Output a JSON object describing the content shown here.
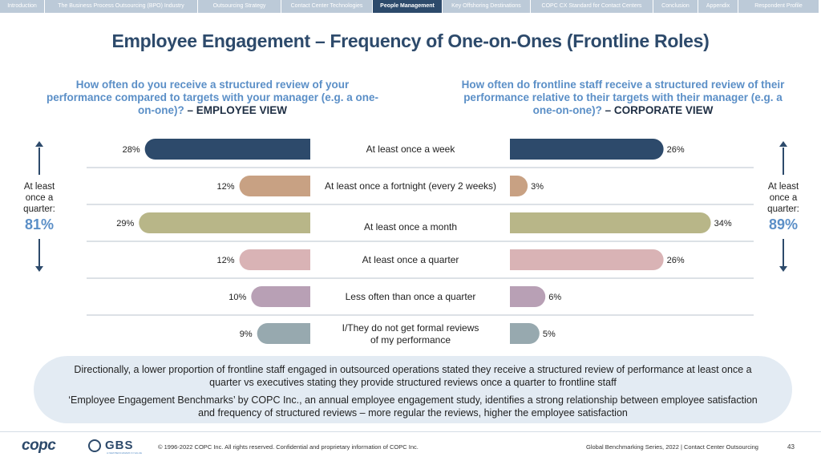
{
  "nav": {
    "tabs": [
      {
        "label": "Introduction",
        "width": 55
      },
      {
        "label": "The Business Process Outsourcing (BPO) Industry",
        "width": 190
      },
      {
        "label": "Outsourcing Strategy",
        "width": 103
      },
      {
        "label": "Contact Center Technologies",
        "width": 113
      },
      {
        "label": "People Management",
        "width": 86,
        "active": true
      },
      {
        "label": "Key Offshoring Destinations",
        "width": 109
      },
      {
        "label": "COPC CX Standard for Contact Centers",
        "width": 152
      },
      {
        "label": "Conclusion",
        "width": 55
      },
      {
        "label": "Appendix",
        "width": 49
      },
      {
        "label": "Respondent Profile",
        "width": 100
      }
    ]
  },
  "title": "Employee Engagement – Frequency of One-on-Ones (Frontline Roles)",
  "left_question": {
    "text": "How often do you receive a structured review of your performance compared to targets with your manager (e.g. a one-on-one)?",
    "view": "– EMPLOYEE VIEW"
  },
  "right_question": {
    "text": "How often do frontline staff receive a structured review of their performance relative to their targets with their manager (e.g. a one-on-one)?",
    "view": "– CORPORATE VIEW"
  },
  "left_side": {
    "label": "At least once a quarter:",
    "value": "81%"
  },
  "right_side": {
    "label": "At least once a quarter:",
    "value": "89%"
  },
  "chart_data": {
    "type": "bar",
    "orientation": "diverging-horizontal",
    "categories": [
      "At least once a week",
      "At least once a fortnight (every 2 weeks)",
      "At least once a month",
      "At least once a quarter",
      "Less often than once a quarter",
      "I/They do not get formal reviews of my performance"
    ],
    "series": [
      {
        "name": "EMPLOYEE VIEW",
        "values": [
          28,
          12,
          29,
          12,
          10,
          9
        ]
      },
      {
        "name": "CORPORATE VIEW",
        "values": [
          26,
          3,
          34,
          26,
          6,
          5
        ]
      }
    ],
    "colors": [
      "#2d4a6b",
      "#c8a183",
      "#b8b688",
      "#d9b3b5",
      "#b8a0b5",
      "#97a9af"
    ],
    "unit": "%"
  },
  "summary": {
    "p1": "Directionally, a lower proportion of frontline staff engaged in outsourced operations stated they receive a structured review of performance at least once a quarter vs executives stating they provide structured reviews once a quarter to frontline staff",
    "p2": "‘Employee Engagement Benchmarks’ by COPC Inc., an annual employee engagement study, identifies a strong relationship between employee satisfaction and frequency of structured reviews – more regular the reviews, higher the employee satisfaction"
  },
  "footer": {
    "logo_copc": "copc",
    "logo_gbs": "GBS",
    "logo_gbs_tagline": "A NEW BENCHMARK IN VALUE",
    "copyright": "© 1996-2022 COPC Inc. All rights reserved. Confidential and proprietary information of COPC Inc.",
    "series": "Global Benchmarking Series, 2022 | Contact Center Outsourcing",
    "page": "43"
  }
}
